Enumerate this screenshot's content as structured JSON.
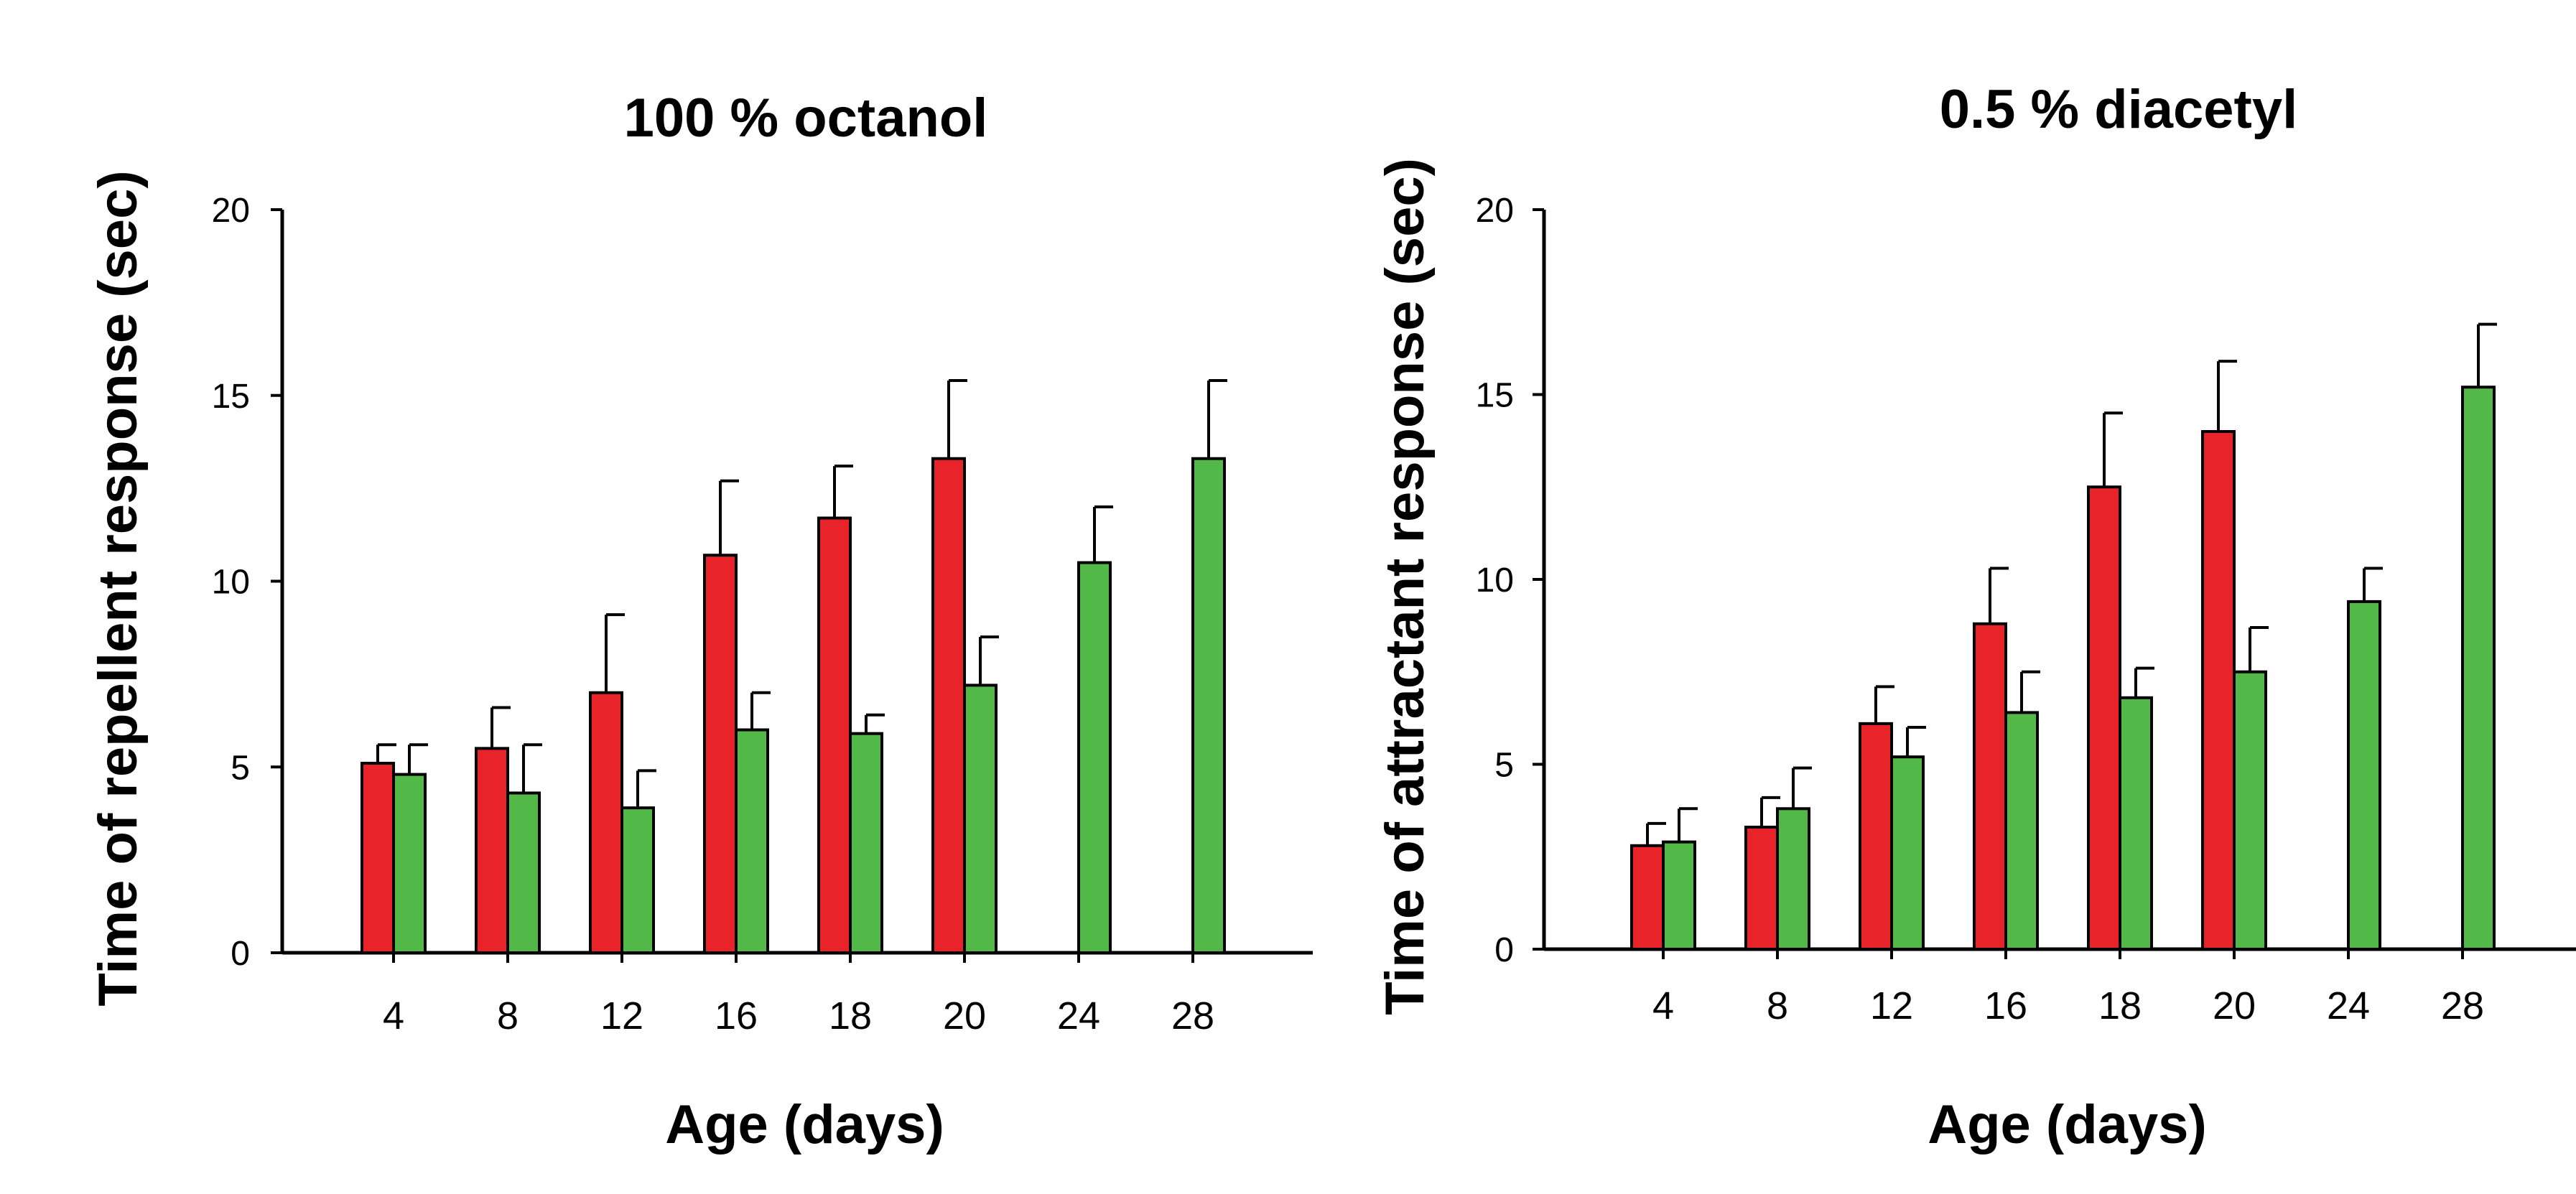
{
  "chart_data": [
    {
      "type": "bar",
      "title": "100 % octanol",
      "xlabel": "Age (days)",
      "ylabel": "Time of repellent response (sec)",
      "ylim": [
        0,
        20
      ],
      "yticks": [
        "0",
        "5",
        "10",
        "15",
        "20"
      ],
      "categories": [
        "4",
        "8",
        "12",
        "16",
        "18",
        "20",
        "24",
        "28"
      ],
      "grid": false,
      "series": [
        {
          "color": "#e8242a",
          "values": [
            5.1,
            5.5,
            7.0,
            10.7,
            11.7,
            13.3,
            null,
            null
          ],
          "errors": [
            0.5,
            1.1,
            2.1,
            2.0,
            1.4,
            2.1,
            null,
            null
          ]
        },
        {
          "color": "#52b848",
          "values": [
            4.8,
            4.3,
            3.9,
            6.0,
            5.9,
            7.2,
            10.5,
            13.3
          ],
          "errors": [
            0.8,
            1.3,
            1.0,
            1.0,
            0.5,
            1.3,
            1.5,
            2.1
          ]
        }
      ]
    },
    {
      "type": "bar",
      "title": "0.5 % diacetyl",
      "xlabel": "Age (days)",
      "ylabel": "Time of attractant response (sec)",
      "ylim": [
        0,
        20
      ],
      "yticks": [
        "0",
        "5",
        "10",
        "15",
        "20"
      ],
      "categories": [
        "4",
        "8",
        "12",
        "16",
        "18",
        "20",
        "24",
        "28"
      ],
      "grid": false,
      "series": [
        {
          "color": "#e8242a",
          "values": [
            2.8,
            3.3,
            6.1,
            8.8,
            12.5,
            14.0,
            null,
            null
          ],
          "errors": [
            0.6,
            0.8,
            1.0,
            1.5,
            2.0,
            1.9,
            null,
            null
          ]
        },
        {
          "color": "#52b848",
          "values": [
            2.9,
            3.8,
            5.2,
            6.4,
            6.8,
            7.5,
            9.4,
            15.2
          ],
          "errors": [
            0.9,
            1.1,
            0.8,
            1.1,
            0.8,
            1.2,
            0.9,
            1.7
          ]
        }
      ]
    }
  ]
}
